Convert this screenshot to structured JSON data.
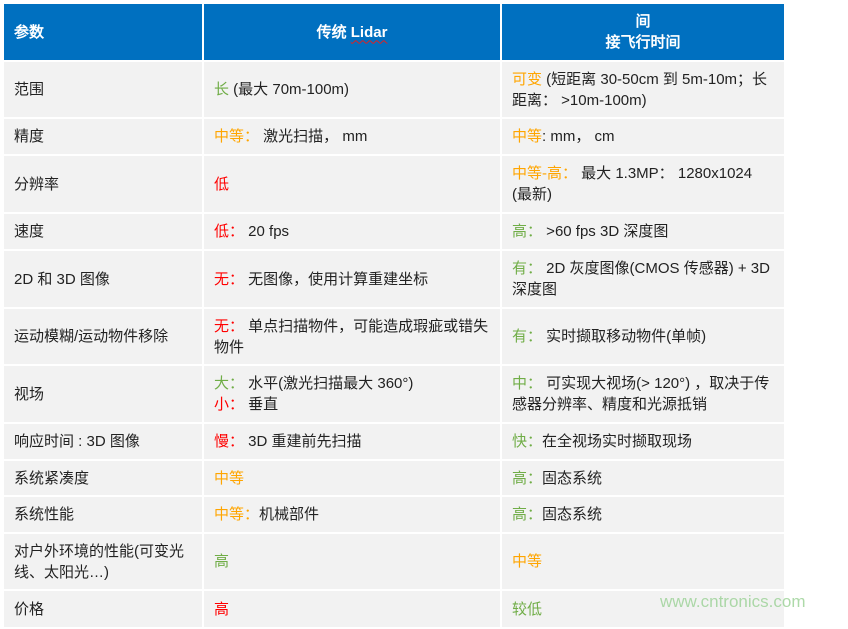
{
  "colors": {
    "header_bg": "#0070C0",
    "green": "#70AD47",
    "orange": "#FFA500",
    "red": "#FF0000",
    "text": "#222222"
  },
  "header": {
    "col1": "参数",
    "col2_prefix": "传统 ",
    "col2_lidar": "Lidar",
    "col3_line1": "间",
    "col3_line2": "接飞行时间"
  },
  "rows": [
    {
      "param": "范围",
      "lidar": [
        {
          "t": "长",
          "c": "green"
        },
        {
          "t": " (最大 70m-100m)"
        }
      ],
      "tof": [
        {
          "t": "可变",
          "c": "orange"
        },
        {
          "t": " (短距离 30-50cm 到 5m-10m；长距离： >10m-100m)"
        }
      ]
    },
    {
      "param": "精度",
      "lidar": [
        {
          "t": "中等：",
          "c": "orange"
        },
        {
          "t": " 激光扫描， mm"
        }
      ],
      "tof": [
        {
          "t": "中等",
          "c": "orange"
        },
        {
          "t": ": mm， cm"
        }
      ]
    },
    {
      "param": "分辨率",
      "lidar": [
        {
          "t": "低",
          "c": "red"
        }
      ],
      "tof": [
        {
          "t": "中等-高：",
          "c": "orange"
        },
        {
          "t": " 最大 1.3MP： 1280x1024 (最新)"
        }
      ]
    },
    {
      "param": "速度",
      "lidar": [
        {
          "t": "低：",
          "c": "red"
        },
        {
          "t": " 20 fps"
        }
      ],
      "tof": [
        {
          "t": "高：",
          "c": "green"
        },
        {
          "t": " >60 fps  3D 深度图"
        }
      ]
    },
    {
      "param": "2D 和 3D 图像",
      "lidar": [
        {
          "t": "无：",
          "c": "red"
        },
        {
          "t": " 无图像，使用计算重建坐标"
        }
      ],
      "tof": [
        {
          "t": "有：",
          "c": "green"
        },
        {
          "t": " 2D 灰度图像(CMOS 传感器) + 3D 深度图"
        }
      ]
    },
    {
      "param": "运动模糊/运动物件移除",
      "lidar": [
        {
          "t": "无：",
          "c": "red"
        },
        {
          "t": " 单点扫描物件，可能造成瑕疵或错失物件"
        }
      ],
      "tof": [
        {
          "t": "有：",
          "c": "green"
        },
        {
          "t": " 实时撷取移动物件(单帧)"
        }
      ]
    },
    {
      "param": "视场",
      "lidar": [
        {
          "t": "大：",
          "c": "green"
        },
        {
          "t": " 水平(激光扫描最大 360°)"
        },
        {
          "br": true
        },
        {
          "t": "小：",
          "c": "red"
        },
        {
          "t": " 垂直"
        }
      ],
      "tof": [
        {
          "t": "中：",
          "c": "green"
        },
        {
          "t": " 可实现大视场(> 120°) ，取决于传感器分辨率、精度和光源抵销"
        }
      ]
    },
    {
      "param": "响应时间 : 3D 图像",
      "lidar": [
        {
          "t": "慢：",
          "c": "red"
        },
        {
          "t": " 3D 重建前先扫描"
        }
      ],
      "tof": [
        {
          "t": "快：",
          "c": "green"
        },
        {
          "t": "在全视场实时撷取现场"
        }
      ]
    },
    {
      "param": "系统紧凑度",
      "lidar": [
        {
          "t": "中等",
          "c": "orange"
        }
      ],
      "tof": [
        {
          "t": "高：",
          "c": "green"
        },
        {
          "t": "固态系统"
        }
      ]
    },
    {
      "param": "系统性能",
      "lidar": [
        {
          "t": "中等：",
          "c": "orange"
        },
        {
          "t": "机械部件"
        }
      ],
      "tof": [
        {
          "t": "高：",
          "c": "green"
        },
        {
          "t": "固态系统"
        }
      ]
    },
    {
      "param": "对户外环境的性能(可变光线、太阳光…)",
      "lidar": [
        {
          "t": "高",
          "c": "green"
        }
      ],
      "tof": [
        {
          "t": "中等",
          "c": "orange"
        }
      ]
    },
    {
      "param": "价格",
      "lidar": [
        {
          "t": "高",
          "c": "red"
        }
      ],
      "tof": [
        {
          "t": "较低",
          "c": "green"
        }
      ]
    }
  ],
  "watermark": "www.cntronics.com"
}
